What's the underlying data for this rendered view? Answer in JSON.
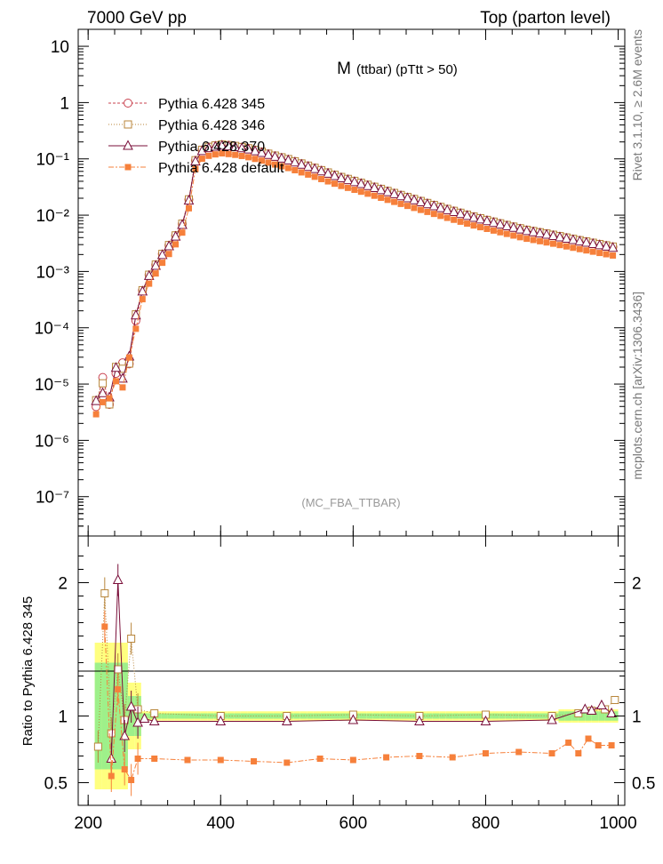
{
  "header": {
    "left": "7000 GeV pp",
    "right": "Top (parton level)"
  },
  "side": {
    "rivet": "Rivet 3.1.10, ≥ 2.6M events",
    "mcplots": "mcplots.cern.ch [arXiv:1306.3436]"
  },
  "chart_data": [
    {
      "type": "line",
      "yscale": "log",
      "title": "M (ttbar) (pTtt > 50)",
      "title_main": "M",
      "title_sub": "(ttbar) (pTtt > 50)",
      "watermark": "(MC_FBA_TTBAR)",
      "xlabel": "",
      "ylabel": "",
      "xlim": [
        185,
        1010
      ],
      "ylim": [
        2e-08,
        20
      ],
      "y_tick_labels": [
        "10",
        "1",
        "10⁻¹",
        "10⁻²",
        "10⁻³",
        "10⁻⁴",
        "10⁻⁵",
        "10⁻⁶",
        "10⁻⁷"
      ],
      "y_tick_values": [
        10,
        1,
        0.1,
        0.01,
        0.001,
        0.0001,
        1e-05,
        1e-06,
        1e-07
      ],
      "legend_position": "top-left",
      "legend": [
        {
          "name": "Pythia 6.428 345",
          "marker": "circle",
          "color": "#c8404e",
          "dash": "3,2"
        },
        {
          "name": "Pythia 6.428 346",
          "marker": "square",
          "color": "#b8863b",
          "dash": "1,2"
        },
        {
          "name": "Pythia 6.428 370",
          "marker": "triangle",
          "color": "#7a0f3a",
          "dash": ""
        },
        {
          "name": "Pythia 6.428 default",
          "marker": "filled-square",
          "color": "#f6803b",
          "dash": "6,2,2,2"
        }
      ],
      "reference_curve": {
        "x": [
          210,
          220,
          230,
          240,
          250,
          260,
          270,
          280,
          290,
          300,
          310,
          320,
          330,
          340,
          350,
          360,
          370,
          380,
          400,
          420,
          440,
          460,
          480,
          500,
          540,
          580,
          620,
          660,
          700,
          740,
          780,
          820,
          860,
          900,
          940,
          995
        ],
        "y": [
          3e-06,
          1.2e-05,
          5e-06,
          1.5e-05,
          1.7e-05,
          2.5e-05,
          0.0001,
          0.0004,
          0.0008,
          0.0012,
          0.0019,
          0.0027,
          0.004,
          0.006,
          0.013,
          0.085,
          0.14,
          0.16,
          0.18,
          0.17,
          0.155,
          0.135,
          0.115,
          0.1,
          0.07,
          0.048,
          0.035,
          0.025,
          0.018,
          0.013,
          0.0095,
          0.0072,
          0.0055,
          0.0045,
          0.0036,
          0.0027
        ]
      },
      "series": [
        {
          "name": "Pythia 6.428 345",
          "ratio_to_ref": 1.0
        },
        {
          "name": "Pythia 6.428 346",
          "ratio_to_ref": 1.01
        },
        {
          "name": "Pythia 6.428 370",
          "ratio_to_ref": 0.96
        },
        {
          "name": "Pythia 6.428 default",
          "ratio_to_ref": 0.7
        }
      ]
    },
    {
      "type": "line",
      "yscale": "linear",
      "ylabel": "Ratio to Pythia 6.428 345",
      "xlim": [
        185,
        1010
      ],
      "ylim": [
        0.33,
        2.35
      ],
      "x_ticks": [
        200,
        400,
        600,
        800,
        1000
      ],
      "y_ticks": [
        0.5,
        1,
        2
      ],
      "y_tick_labels": [
        "0.5",
        "1",
        "2"
      ],
      "series": [
        {
          "name": "Pythia 6.428 346",
          "x": [
            215,
            225,
            235,
            245,
            255,
            265,
            275,
            300,
            400,
            500,
            600,
            700,
            800,
            900,
            940,
            960,
            980,
            995
          ],
          "y": [
            0.77,
            1.92,
            0.87,
            1.35,
            0.97,
            1.58,
            1.05,
            1.02,
            1.0,
            1.0,
            1.01,
            1.0,
            1.01,
            1.0,
            1.02,
            1.04,
            1.05,
            1.12
          ]
        },
        {
          "name": "Pythia 6.428 370",
          "x": [
            235,
            245,
            255,
            265,
            275,
            285,
            300,
            400,
            500,
            600,
            700,
            800,
            900,
            950,
            960,
            975,
            990
          ],
          "y": [
            0.68,
            2.02,
            0.85,
            1.07,
            0.95,
            0.98,
            0.96,
            0.96,
            0.96,
            0.97,
            0.96,
            0.96,
            0.97,
            1.05,
            1.04,
            1.08,
            1.02
          ]
        },
        {
          "name": "Pythia 6.428 default",
          "x": [
            225,
            235,
            245,
            255,
            265,
            275,
            300,
            350,
            400,
            450,
            500,
            550,
            600,
            650,
            700,
            750,
            800,
            850,
            900,
            925,
            940,
            955,
            970,
            990
          ],
          "y": [
            1.67,
            0.55,
            1.2,
            0.6,
            0.52,
            0.68,
            0.68,
            0.67,
            0.67,
            0.66,
            0.65,
            0.68,
            0.67,
            0.69,
            0.7,
            0.69,
            0.72,
            0.73,
            0.72,
            0.8,
            0.72,
            0.83,
            0.78,
            0.78
          ]
        }
      ]
    }
  ]
}
